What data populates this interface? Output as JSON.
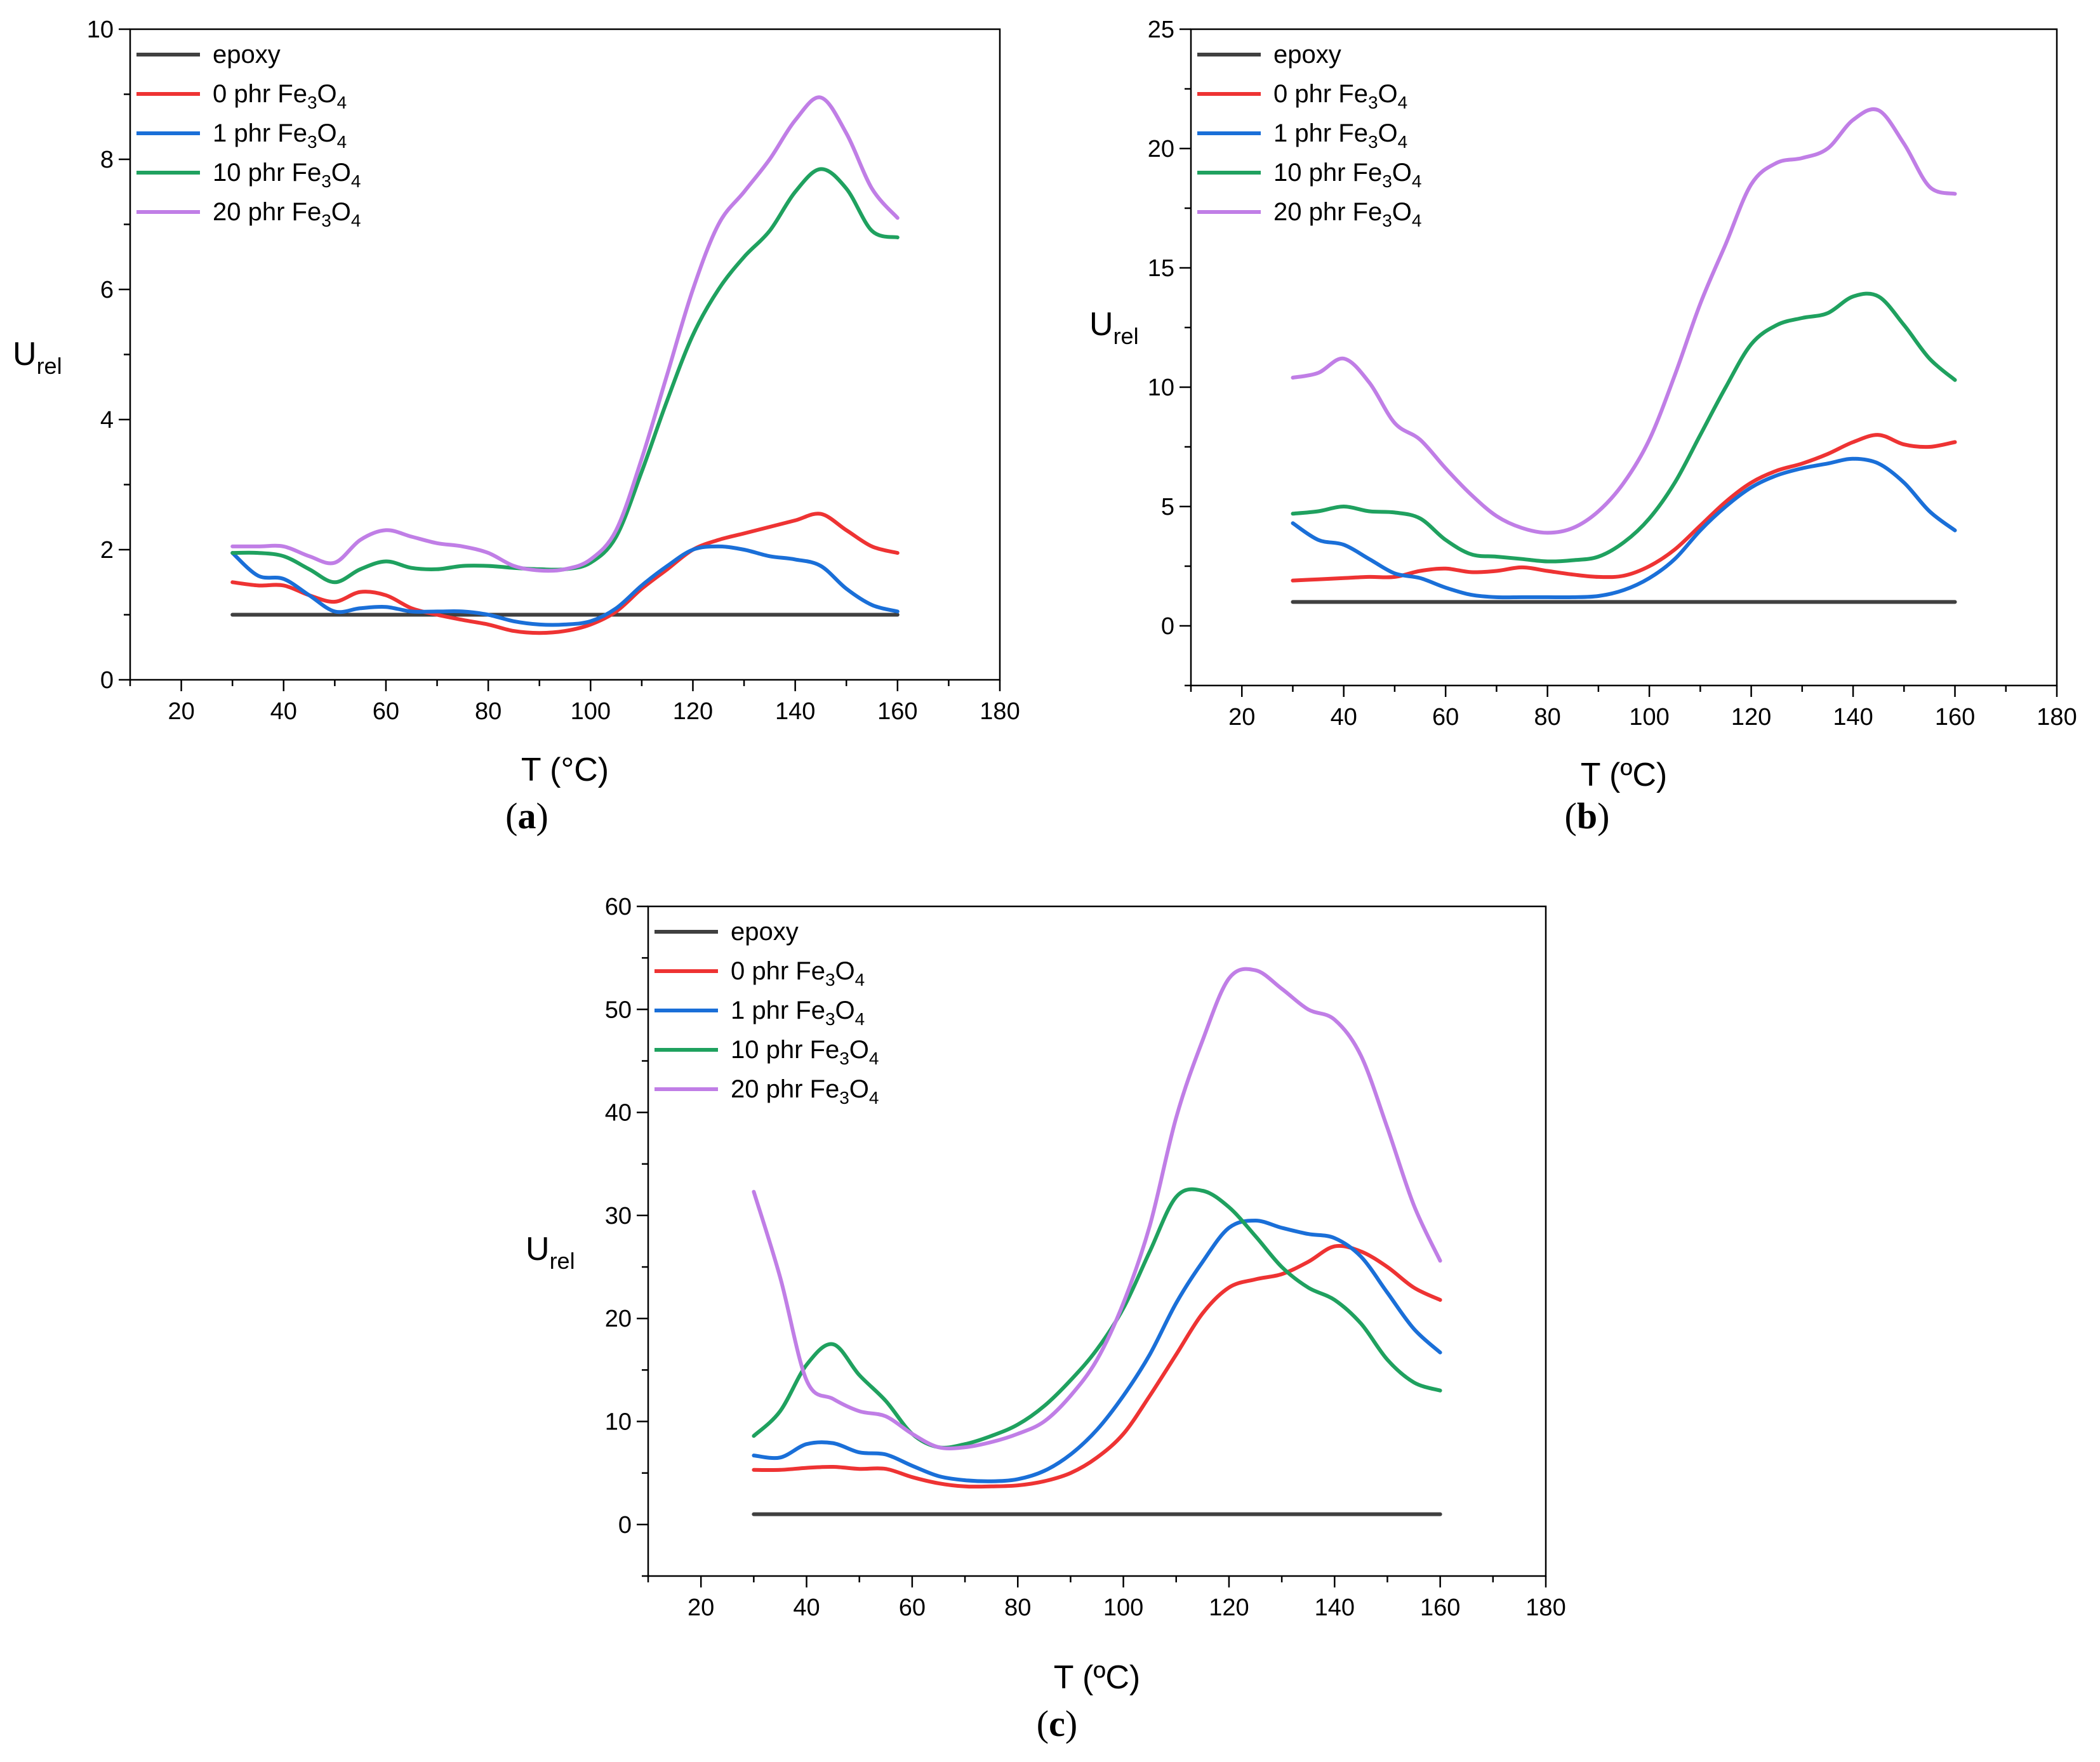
{
  "colors": {
    "epoxy": "#404040",
    "0 phr": "#ee3333",
    "1 phr": "#1a6fd8",
    "10 phr": "#1fa15f",
    "20 phr": "#c07ee6"
  },
  "legend": [
    {
      "key": "epoxy",
      "label": "epoxy",
      "sub": "",
      "sub2": ""
    },
    {
      "key": "0 phr",
      "label": "0 phr Fe",
      "sub": "3",
      "mid": "O",
      "sub2": "4"
    },
    {
      "key": "1 phr",
      "label": "1 phr Fe",
      "sub": "3",
      "mid": "O",
      "sub2": "4"
    },
    {
      "key": "10 phr",
      "label": "10 phr Fe",
      "sub": "3",
      "mid": "O",
      "sub2": "4"
    },
    {
      "key": "20 phr",
      "label": "20 phr Fe",
      "sub": "3",
      "mid": "O",
      "sub2": "4"
    }
  ],
  "chart_data": [
    {
      "type": "line",
      "caption_paren_open": "(",
      "caption_letter": "a",
      "caption_paren_close": ")",
      "xlabel": "T (°C)",
      "ylabel_main": "U",
      "ylabel_sub": "rel",
      "xlim": [
        10,
        180
      ],
      "ylim": [
        0,
        10
      ],
      "xticks": [
        20,
        40,
        60,
        80,
        100,
        120,
        140,
        160,
        180
      ],
      "yticks": [
        0,
        2,
        4,
        6,
        8,
        10
      ],
      "x": [
        30,
        35,
        40,
        45,
        50,
        55,
        60,
        65,
        70,
        75,
        80,
        85,
        90,
        95,
        100,
        105,
        110,
        115,
        120,
        125,
        130,
        135,
        140,
        145,
        150,
        155,
        160
      ],
      "series": [
        {
          "key": "epoxy",
          "values": [
            1,
            1,
            1,
            1,
            1,
            1,
            1,
            1,
            1,
            1,
            1,
            1,
            1,
            1,
            1,
            1,
            1,
            1,
            1,
            1,
            1,
            1,
            1,
            1,
            1,
            1,
            1
          ]
        },
        {
          "key": "0 phr",
          "values": [
            1.5,
            1.45,
            1.45,
            1.3,
            1.2,
            1.35,
            1.3,
            1.1,
            1.0,
            0.92,
            0.85,
            0.75,
            0.72,
            0.75,
            0.85,
            1.05,
            1.4,
            1.7,
            2.0,
            2.15,
            2.25,
            2.35,
            2.45,
            2.55,
            2.3,
            2.05,
            1.95
          ]
        },
        {
          "key": "1 phr",
          "values": [
            1.95,
            1.6,
            1.55,
            1.3,
            1.05,
            1.1,
            1.12,
            1.05,
            1.05,
            1.05,
            1.0,
            0.9,
            0.85,
            0.85,
            0.9,
            1.1,
            1.45,
            1.75,
            2.0,
            2.05,
            2.0,
            1.9,
            1.85,
            1.75,
            1.4,
            1.15,
            1.05
          ]
        },
        {
          "key": "10 phr",
          "values": [
            1.95,
            1.95,
            1.9,
            1.7,
            1.5,
            1.7,
            1.82,
            1.72,
            1.7,
            1.75,
            1.75,
            1.72,
            1.7,
            1.7,
            1.8,
            2.2,
            3.2,
            4.3,
            5.3,
            6.0,
            6.5,
            6.9,
            7.5,
            7.85,
            7.55,
            6.9,
            6.8
          ]
        },
        {
          "key": "20 phr",
          "values": [
            2.05,
            2.05,
            2.05,
            1.9,
            1.8,
            2.15,
            2.3,
            2.2,
            2.1,
            2.05,
            1.95,
            1.75,
            1.68,
            1.7,
            1.85,
            2.3,
            3.4,
            4.7,
            6.0,
            7.0,
            7.5,
            8.0,
            8.6,
            8.95,
            8.4,
            7.55,
            7.1
          ]
        }
      ]
    },
    {
      "type": "line",
      "caption_paren_open": "(",
      "caption_letter": "b",
      "caption_paren_close": ")",
      "xlabel": "T (ºC)",
      "ylabel_main": "U",
      "ylabel_sub": "rel",
      "xlim": [
        10,
        180
      ],
      "ylim": [
        -2.5,
        25
      ],
      "xticks": [
        20,
        40,
        60,
        80,
        100,
        120,
        140,
        160,
        180
      ],
      "yticks": [
        0,
        5,
        10,
        15,
        20,
        25
      ],
      "x": [
        30,
        35,
        40,
        45,
        50,
        55,
        60,
        65,
        70,
        75,
        80,
        85,
        90,
        95,
        100,
        105,
        110,
        115,
        120,
        125,
        130,
        135,
        140,
        145,
        150,
        155,
        160
      ],
      "series": [
        {
          "key": "epoxy",
          "values": [
            1,
            1,
            1,
            1,
            1,
            1,
            1,
            1,
            1,
            1,
            1,
            1,
            1,
            1,
            1,
            1,
            1,
            1,
            1,
            1,
            1,
            1,
            1,
            1,
            1,
            1,
            1
          ]
        },
        {
          "key": "0 phr",
          "values": [
            1.9,
            1.95,
            2.0,
            2.05,
            2.05,
            2.3,
            2.4,
            2.25,
            2.3,
            2.45,
            2.3,
            2.15,
            2.05,
            2.1,
            2.5,
            3.2,
            4.2,
            5.2,
            6.0,
            6.5,
            6.8,
            7.2,
            7.7,
            8.0,
            7.6,
            7.5,
            7.7
          ]
        },
        {
          "key": "1 phr",
          "values": [
            4.3,
            3.6,
            3.4,
            2.8,
            2.2,
            2.0,
            1.6,
            1.3,
            1.2,
            1.2,
            1.2,
            1.2,
            1.25,
            1.5,
            2.0,
            2.8,
            4.0,
            5.0,
            5.8,
            6.3,
            6.6,
            6.8,
            7.0,
            6.8,
            6.0,
            4.8,
            4.0
          ]
        },
        {
          "key": "10 phr",
          "values": [
            4.7,
            4.8,
            5.0,
            4.8,
            4.75,
            4.5,
            3.6,
            3.0,
            2.9,
            2.8,
            2.7,
            2.75,
            2.9,
            3.5,
            4.5,
            6.0,
            8.0,
            10.0,
            11.8,
            12.6,
            12.9,
            13.1,
            13.8,
            13.8,
            12.6,
            11.2,
            10.3
          ]
        },
        {
          "key": "20 phr",
          "values": [
            10.4,
            10.6,
            11.2,
            10.2,
            8.5,
            7.8,
            6.6,
            5.5,
            4.6,
            4.1,
            3.9,
            4.1,
            4.8,
            6.0,
            7.8,
            10.5,
            13.5,
            16.0,
            18.5,
            19.4,
            19.6,
            20.0,
            21.2,
            21.6,
            20.2,
            18.4,
            18.1
          ]
        }
      ]
    },
    {
      "type": "line",
      "caption_paren_open": "(",
      "caption_letter": "c",
      "caption_paren_close": ")",
      "xlabel": "T (ºC)",
      "ylabel_main": "U",
      "ylabel_sub": "rel",
      "xlim": [
        10,
        180
      ],
      "ylim": [
        -5,
        60
      ],
      "xticks": [
        20,
        40,
        60,
        80,
        100,
        120,
        140,
        160,
        180
      ],
      "yticks": [
        0,
        10,
        20,
        30,
        40,
        50,
        60
      ],
      "x": [
        30,
        35,
        40,
        45,
        50,
        55,
        60,
        65,
        70,
        75,
        80,
        85,
        90,
        95,
        100,
        105,
        110,
        115,
        120,
        125,
        130,
        135,
        140,
        145,
        150,
        155,
        160
      ],
      "series": [
        {
          "key": "epoxy",
          "values": [
            1,
            1,
            1,
            1,
            1,
            1,
            1,
            1,
            1,
            1,
            1,
            1,
            1,
            1,
            1,
            1,
            1,
            1,
            1,
            1,
            1,
            1,
            1,
            1,
            1,
            1,
            1
          ]
        },
        {
          "key": "0 phr",
          "values": [
            5.3,
            5.3,
            5.5,
            5.6,
            5.4,
            5.4,
            4.6,
            4.0,
            3.7,
            3.7,
            3.8,
            4.2,
            5.0,
            6.5,
            8.8,
            12.5,
            16.5,
            20.5,
            23.0,
            23.8,
            24.3,
            25.5,
            27.0,
            26.5,
            25.0,
            23.0,
            21.8
          ]
        },
        {
          "key": "1 phr",
          "values": [
            6.7,
            6.5,
            7.8,
            7.9,
            7.0,
            6.8,
            5.7,
            4.7,
            4.3,
            4.2,
            4.4,
            5.2,
            6.8,
            9.2,
            12.5,
            16.5,
            21.5,
            25.5,
            28.8,
            29.5,
            28.8,
            28.2,
            27.8,
            26.0,
            22.5,
            19.0,
            16.7
          ]
        },
        {
          "key": "10 phr",
          "values": [
            8.6,
            11.0,
            15.5,
            17.5,
            14.5,
            12.0,
            8.8,
            7.5,
            7.8,
            8.6,
            9.7,
            11.5,
            14.0,
            17.0,
            21.0,
            26.5,
            31.8,
            32.4,
            30.8,
            28.0,
            25.0,
            23.0,
            21.8,
            19.5,
            16.0,
            13.8,
            13.0
          ]
        },
        {
          "key": "20 phr",
          "values": [
            32.3,
            24.0,
            14.0,
            12.2,
            11.0,
            10.5,
            8.8,
            7.5,
            7.5,
            8.0,
            8.8,
            10.0,
            12.5,
            16.0,
            21.5,
            29.0,
            39.5,
            47.0,
            53.0,
            53.8,
            52.0,
            50.0,
            49.0,
            45.5,
            38.5,
            31.0,
            25.6
          ]
        }
      ]
    }
  ]
}
